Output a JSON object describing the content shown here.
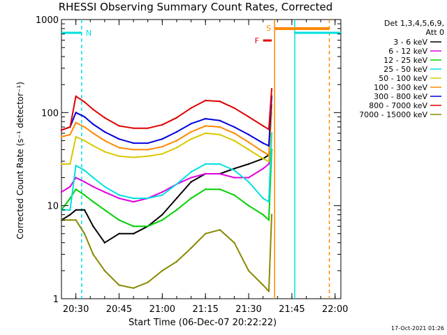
{
  "title": "RHESSI Observing Summary Count Rates, Corrected",
  "legend_header": [
    "Det 1,3,4,5,6,9,",
    "Att 0"
  ],
  "footer_stamp": "17-Oct-2021 01:26",
  "chart_data": {
    "type": "line",
    "title": "RHESSI Observing Summary Count Rates, Corrected",
    "xlabel": "Start Time (06-Dec-07 20:22:22)",
    "ylabel": "Corrected Count Rate (s⁻¹ detector⁻¹)",
    "xlim": [
      "20:25",
      "22:02"
    ],
    "ylim": [
      1,
      1000
    ],
    "yscale": "log",
    "x_ticks": [
      "20:30",
      "20:45",
      "21:00",
      "21:15",
      "21:30",
      "21:45",
      "22:00"
    ],
    "y_ticks": [
      "1",
      "10",
      "100",
      "1000"
    ],
    "legend_placement": "right",
    "series": [
      {
        "name": "3 - 6 keV",
        "color": "#000000",
        "x": [
          "20:25",
          "20:28",
          "20:30",
          "20:33",
          "20:36",
          "20:40",
          "20:45",
          "20:50",
          "20:55",
          "21:00",
          "21:05",
          "21:10",
          "21:15",
          "21:20",
          "21:25",
          "21:30",
          "21:35",
          "21:37",
          "21:38"
        ],
        "y": [
          7,
          8,
          9,
          9,
          6,
          4,
          5,
          5,
          6,
          8,
          12,
          18,
          22,
          22,
          25,
          28,
          32,
          35,
          40
        ]
      },
      {
        "name": "6 - 12 keV",
        "color": "#e000e0",
        "x": [
          "20:25",
          "20:28",
          "20:30",
          "20:33",
          "20:36",
          "20:40",
          "20:45",
          "20:50",
          "20:55",
          "21:00",
          "21:05",
          "21:10",
          "21:15",
          "21:20",
          "21:25",
          "21:30",
          "21:35",
          "21:37",
          "21:38"
        ],
        "y": [
          14,
          16,
          20,
          18,
          16,
          14,
          12,
          11,
          12,
          14,
          17,
          20,
          22,
          22,
          20,
          20,
          25,
          28,
          40
        ]
      },
      {
        "name": "12 - 25 keV",
        "color": "#00d000",
        "x": [
          "20:25",
          "20:28",
          "20:30",
          "20:33",
          "20:36",
          "20:40",
          "20:45",
          "20:50",
          "20:55",
          "21:00",
          "21:05",
          "21:10",
          "21:15",
          "21:20",
          "21:25",
          "21:30",
          "21:35",
          "21:37",
          "21:38"
        ],
        "y": [
          9,
          12,
          15,
          13,
          11,
          9,
          7,
          6,
          6,
          7,
          9,
          12,
          15,
          15,
          13,
          10,
          8,
          7,
          40
        ]
      },
      {
        "name": "25 - 50 keV",
        "color": "#00e0e0",
        "x": [
          "20:25",
          "20:28",
          "20:30",
          "20:33",
          "20:36",
          "20:40",
          "20:45",
          "20:50",
          "20:55",
          "21:00",
          "21:05",
          "21:10",
          "21:15",
          "21:20",
          "21:25",
          "21:30",
          "21:35",
          "21:37",
          "21:38"
        ],
        "y": [
          9,
          9,
          27,
          24,
          20,
          16,
          13,
          12,
          12,
          13,
          17,
          23,
          28,
          28,
          24,
          18,
          12,
          11,
          60
        ]
      },
      {
        "name": "50 - 100 keV",
        "color": "#d8c800",
        "x": [
          "20:25",
          "20:28",
          "20:30",
          "20:33",
          "20:36",
          "20:40",
          "20:45",
          "20:50",
          "20:55",
          "21:00",
          "21:05",
          "21:10",
          "21:15",
          "21:20",
          "21:25",
          "21:30",
          "21:35",
          "21:37",
          "21:38"
        ],
        "y": [
          28,
          28,
          55,
          50,
          44,
          38,
          34,
          33,
          34,
          36,
          42,
          52,
          60,
          58,
          50,
          40,
          32,
          30,
          100
        ]
      },
      {
        "name": "100 - 300 keV",
        "color": "#ff8800",
        "x": [
          "20:25",
          "20:28",
          "20:30",
          "20:33",
          "20:36",
          "20:40",
          "20:45",
          "20:50",
          "20:55",
          "21:00",
          "21:05",
          "21:10",
          "21:15",
          "21:20",
          "21:25",
          "21:30",
          "21:35",
          "21:37",
          "21:38"
        ],
        "y": [
          55,
          58,
          78,
          70,
          60,
          50,
          42,
          40,
          40,
          43,
          50,
          62,
          72,
          70,
          60,
          48,
          38,
          35,
          120
        ]
      },
      {
        "name": "300 - 800 keV",
        "color": "#0000e0",
        "x": [
          "20:25",
          "20:28",
          "20:30",
          "20:33",
          "20:36",
          "20:40",
          "20:45",
          "20:50",
          "20:55",
          "21:00",
          "21:05",
          "21:10",
          "21:15",
          "21:20",
          "21:25",
          "21:30",
          "21:35",
          "21:37",
          "21:38"
        ],
        "y": [
          65,
          70,
          100,
          90,
          75,
          62,
          52,
          47,
          47,
          52,
          62,
          76,
          86,
          82,
          70,
          58,
          47,
          44,
          150
        ]
      },
      {
        "name": "800 - 7000 keV",
        "color": "#e00000",
        "x": [
          "20:25",
          "20:28",
          "20:30",
          "20:33",
          "20:36",
          "20:40",
          "20:45",
          "20:50",
          "20:55",
          "21:00",
          "21:05",
          "21:10",
          "21:15",
          "21:20",
          "21:25",
          "21:30",
          "21:35",
          "21:37",
          "21:38"
        ],
        "y": [
          65,
          70,
          150,
          130,
          108,
          88,
          72,
          68,
          68,
          74,
          88,
          112,
          135,
          132,
          112,
          90,
          72,
          66,
          180
        ]
      },
      {
        "name": "7000 - 15000 keV",
        "color": "#888800",
        "x": [
          "20:25",
          "20:28",
          "20:30",
          "20:33",
          "20:36",
          "20:40",
          "20:45",
          "20:50",
          "20:55",
          "21:00",
          "21:05",
          "21:10",
          "21:15",
          "21:20",
          "21:25",
          "21:30",
          "21:35",
          "21:37",
          "21:38"
        ],
        "y": [
          7,
          7,
          7,
          5,
          3,
          2,
          1.4,
          1.3,
          1.5,
          2,
          2.5,
          3.5,
          5,
          5.5,
          4,
          2,
          1.4,
          1.2,
          8
        ]
      }
    ],
    "annotations": {
      "night_bars": [
        {
          "label": "N",
          "start": "20:25",
          "end": "20:32"
        },
        {
          "label": "",
          "start": "21:46",
          "end": "22:02"
        }
      ],
      "saa_bar": {
        "label": "S",
        "start": "21:39",
        "end": "21:58"
      },
      "flare_marker": {
        "label": "F",
        "start": "21:35",
        "end": "21:38"
      },
      "vlines": [
        {
          "time": "20:32",
          "color": "#00e0e0",
          "style": "dashed"
        },
        {
          "time": "21:39",
          "color": "#ff8800",
          "style": "solid"
        },
        {
          "time": "21:46",
          "color": "#00e0e0",
          "style": "solid"
        },
        {
          "time": "21:58",
          "color": "#ff8800",
          "style": "dashed"
        }
      ]
    }
  }
}
